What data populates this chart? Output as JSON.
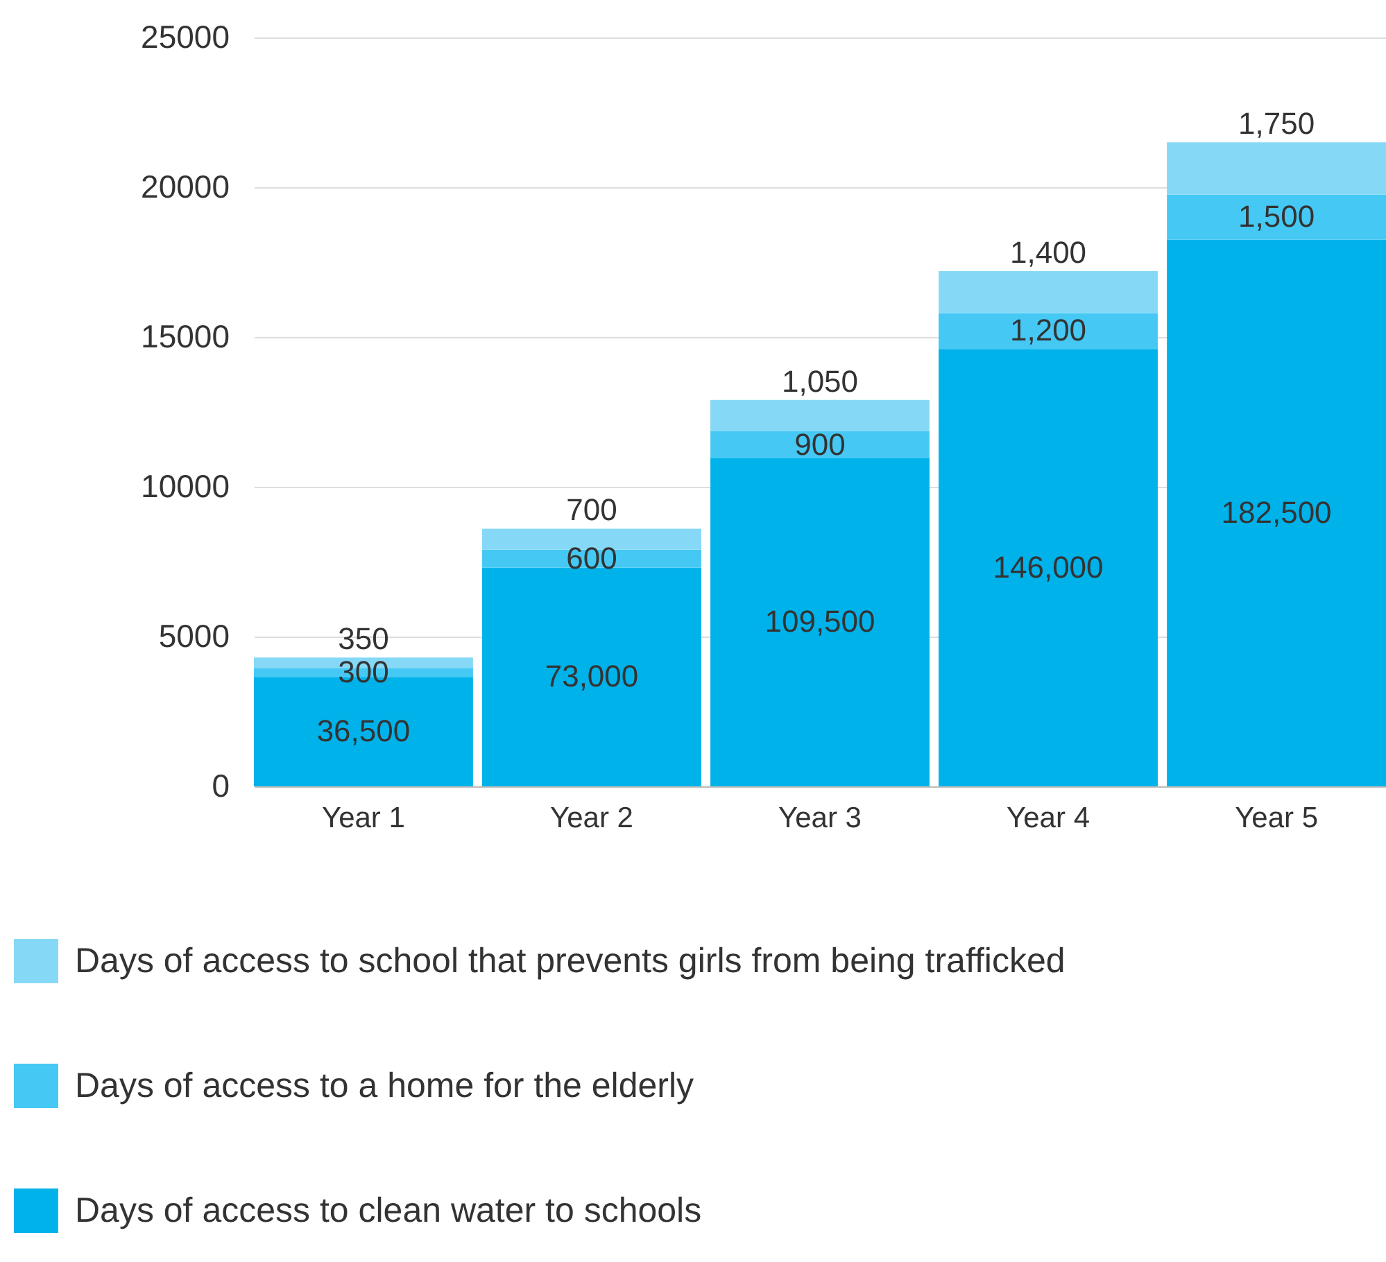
{
  "chart_data": {
    "type": "bar",
    "stacked": true,
    "categories": [
      "Year 1",
      "Year 2",
      "Year 3",
      "Year 4",
      "Year 5"
    ],
    "series": [
      {
        "name": "Days of access to clean water to schools",
        "color": "#00b2ea",
        "values": [
          3650,
          7300,
          10950,
          14600,
          18250
        ]
      },
      {
        "name": "Days of access to a home for the elderly",
        "color": "#45c9f4",
        "values": [
          300,
          600,
          900,
          1200,
          1500
        ],
        "value_labels": [
          "300",
          "600",
          "900",
          "1,200",
          "1,500"
        ]
      },
      {
        "name": "Days of access to school that prevents girls from being trafficked",
        "color": "#86d9f6",
        "values": [
          350,
          700,
          1050,
          1400,
          1750
        ],
        "value_labels": [
          "350",
          "700",
          "1,050",
          "1,400",
          "1,750"
        ]
      }
    ],
    "annotations": [
      "36,500",
      "73,000",
      "109,500",
      "146,000",
      "182,500"
    ],
    "ylim": [
      0,
      25000
    ],
    "yticks": [
      0,
      5000,
      10000,
      15000,
      20000,
      25000
    ],
    "grid": "y",
    "legend": "bottom"
  }
}
